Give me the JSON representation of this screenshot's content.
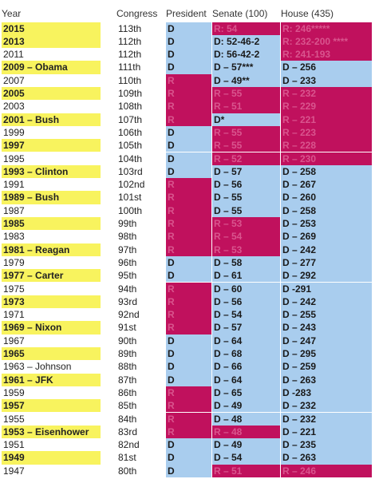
{
  "header": [
    "Year",
    "Congress",
    "President",
    "Senate (100)",
    "House (435)"
  ],
  "rows": [
    [
      "2015",
      "113th",
      "D",
      "R: 54",
      "R: 246*****"
    ],
    [
      "2013",
      "112th",
      "D",
      "D: 52-46-2",
      "R: 232-200 ****"
    ],
    [
      "2011",
      "112th",
      "D",
      "D: 56-42-2",
      "R: 241-193"
    ],
    [
      "2009 – Obama",
      "111th",
      "D",
      "D – 57***",
      "D – 256"
    ],
    [
      "2007",
      "110th",
      "R",
      "D – 49**",
      "D – 233"
    ],
    [
      "2005",
      "109th",
      "R",
      "R – 55",
      "R – 232"
    ],
    [
      "2003",
      "108th",
      "R",
      "R – 51",
      "R – 229"
    ],
    [
      "2001 – Bush",
      "107th",
      "R",
      "D*",
      "R – 221"
    ],
    [
      "1999",
      "106th",
      "D",
      "R – 55",
      "R – 223"
    ],
    [
      "1997",
      "105th",
      "D",
      "R – 55",
      "R – 228"
    ],
    [
      "1995",
      "104th",
      "D",
      "R – 52",
      "R – 230"
    ],
    [
      "1993 – Clinton",
      "103rd",
      "D",
      "D – 57",
      "D – 258"
    ],
    [
      "1991",
      "102nd",
      "R",
      "D – 56",
      "D – 267"
    ],
    [
      "1989 – Bush",
      "101st",
      "R",
      "D – 55",
      "D – 260"
    ],
    [
      "1987",
      "100th",
      "R",
      "D – 55",
      "D – 258"
    ],
    [
      "1985",
      "99th",
      "R",
      "R – 53",
      "D – 253"
    ],
    [
      "1983",
      "98th",
      "R",
      "R – 54",
      "D – 269"
    ],
    [
      "1981 – Reagan",
      "97th",
      "R",
      "R – 53",
      "D – 242"
    ],
    [
      "1979",
      "96th",
      "D",
      "D – 58",
      "D – 277"
    ],
    [
      "1977 – Carter",
      "95th",
      "D",
      "D – 61",
      "D – 292"
    ],
    [
      "1975",
      "94th",
      "R",
      "D – 60",
      "D -291"
    ],
    [
      "1973",
      "93rd",
      "R",
      "D – 56",
      "D – 242"
    ],
    [
      "1971",
      "92nd",
      "R",
      "D – 54",
      "D – 255"
    ],
    [
      "1969 – Nixon",
      "91st",
      "R",
      "D – 57",
      "D – 243"
    ],
    [
      "1967",
      "90th",
      "D",
      "D – 64",
      "D – 247"
    ],
    [
      "1965",
      "89th",
      "D",
      "D – 68",
      "D – 295"
    ],
    [
      "1963 – Johnson",
      "88th",
      "D",
      "D – 66",
      "D – 259"
    ],
    [
      "1961 – JFK",
      "87th",
      "D",
      "D – 64",
      "D – 263"
    ],
    [
      "1959",
      "86th",
      "R",
      "D – 65",
      "D -283"
    ],
    [
      "1957",
      "85th",
      "R",
      "D – 49",
      "D – 232"
    ],
    [
      "1955",
      "84th",
      "R",
      "D – 48",
      "D – 232"
    ],
    [
      "1953 – Eisenhower",
      "83rd",
      "R",
      "R – 48",
      "D – 221"
    ],
    [
      "1951",
      "82nd",
      "D",
      "D – 49",
      "D – 235"
    ],
    [
      "1949",
      "81st",
      "D",
      "D – 54",
      "D – 263"
    ],
    [
      "1947",
      "80th",
      "D",
      "R – 51",
      "R – 246"
    ]
  ]
}
